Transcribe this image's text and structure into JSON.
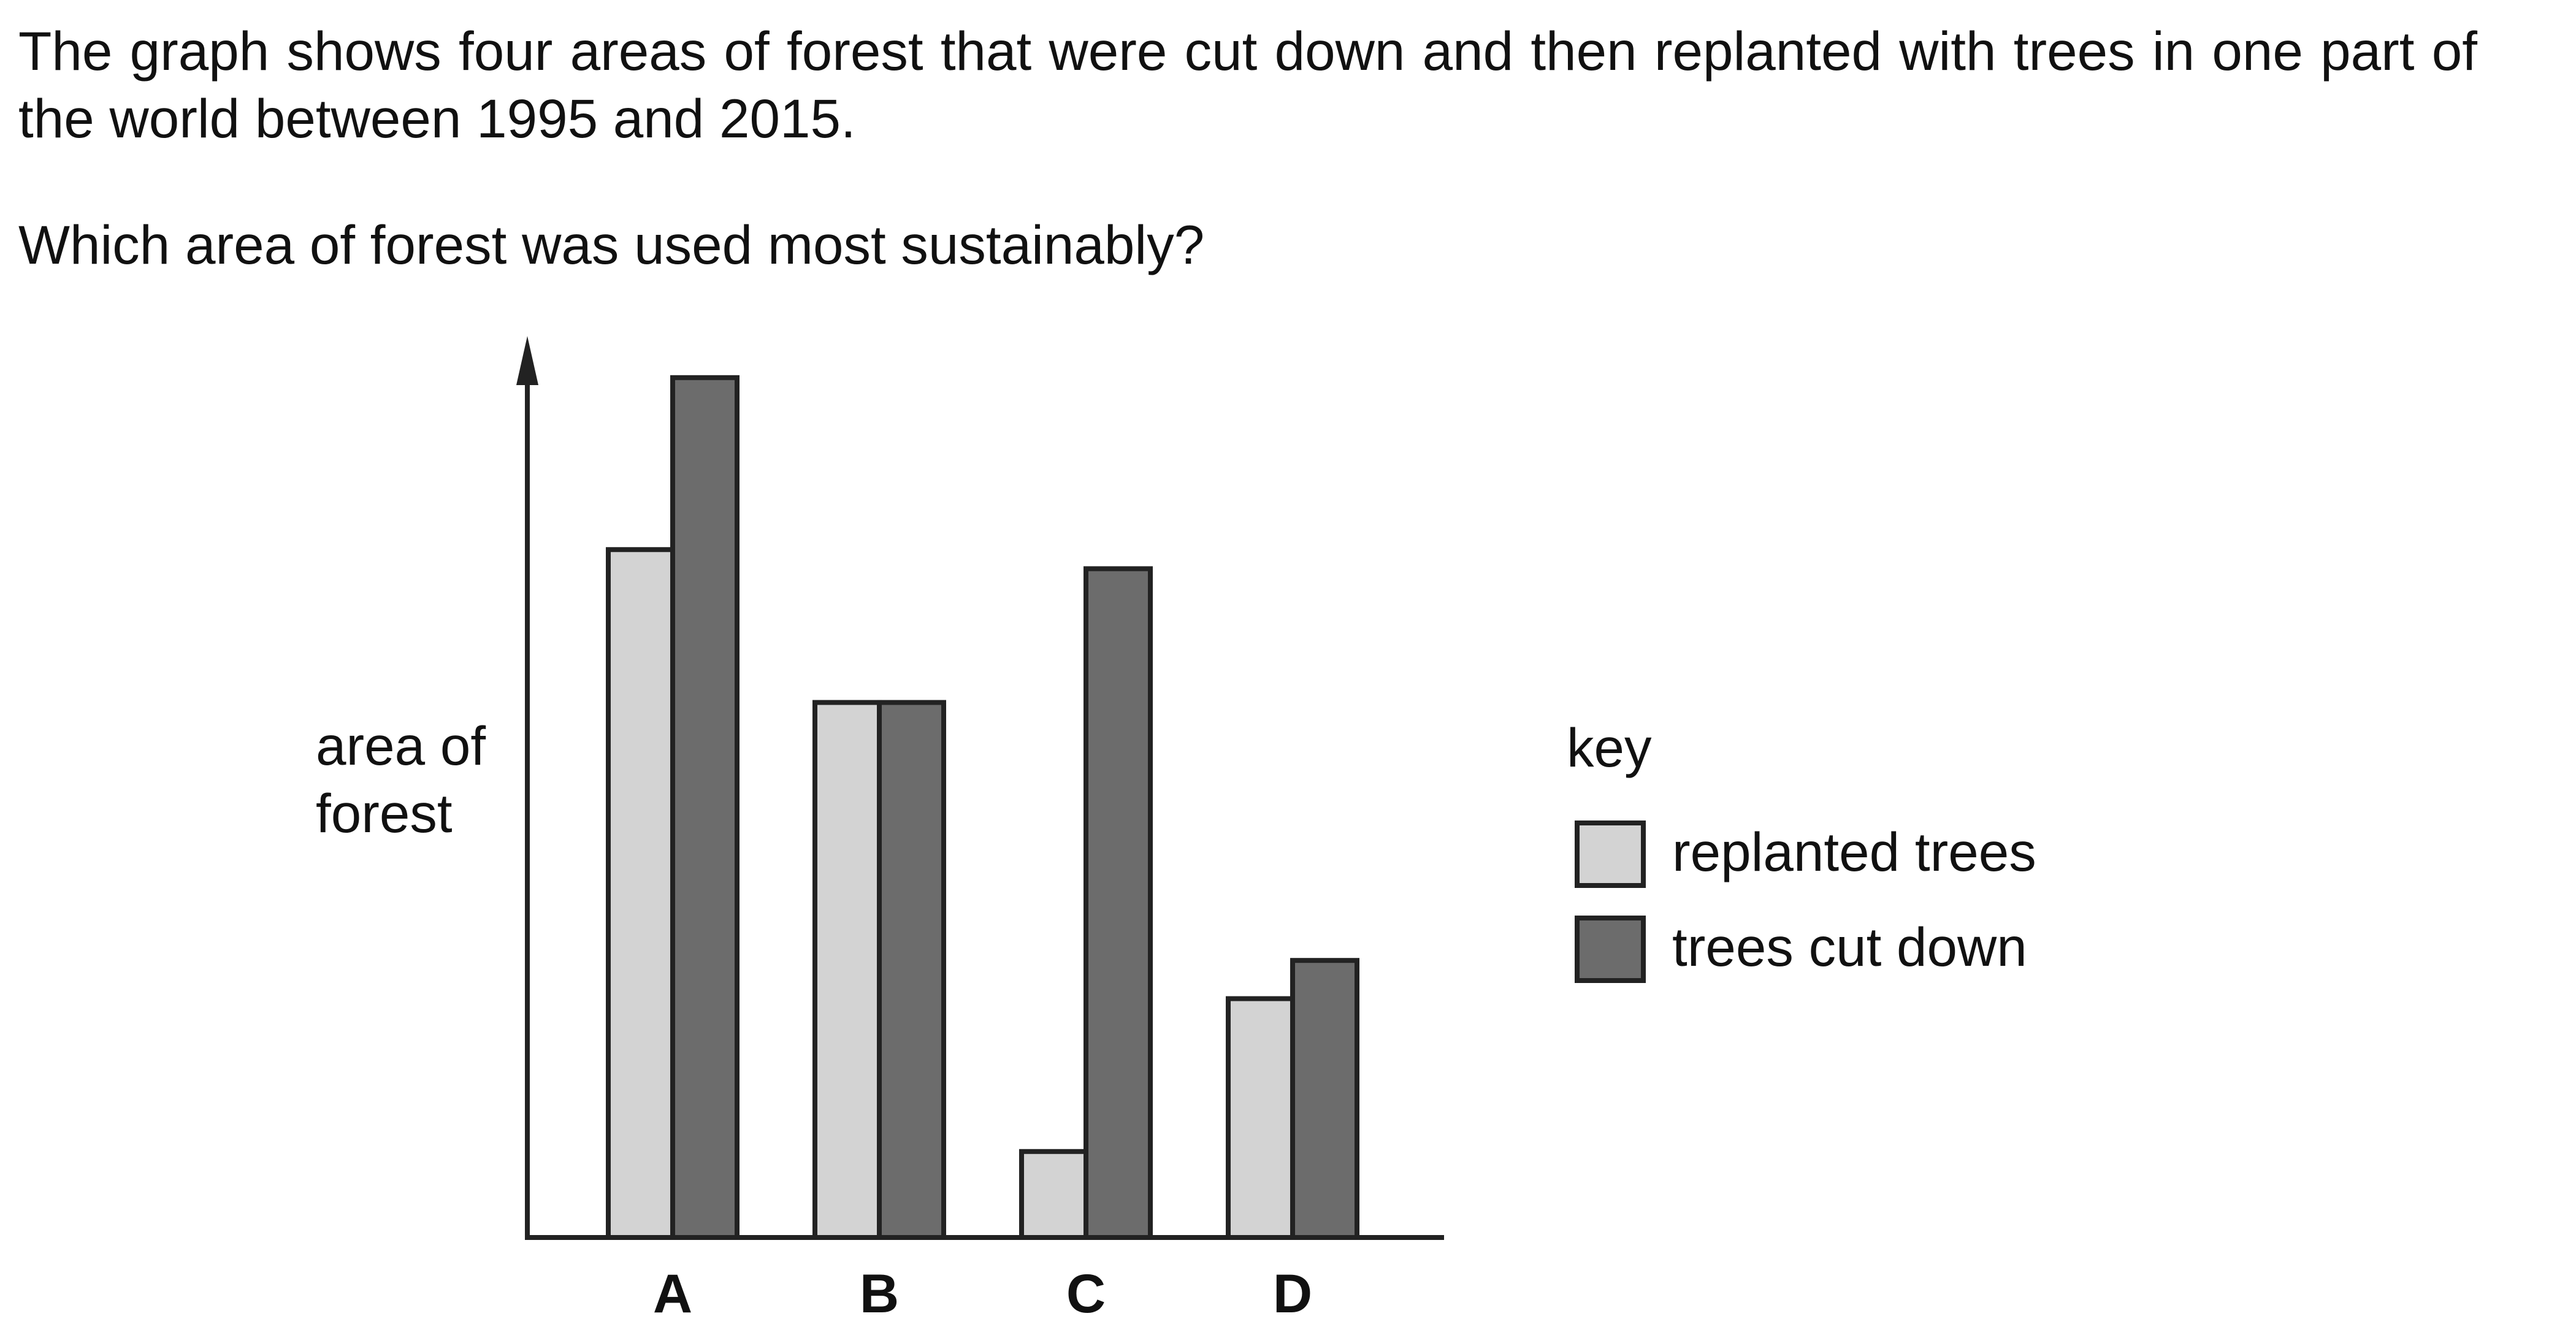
{
  "question": {
    "intro": "The graph shows four areas of forest that were cut down and then replanted with trees in one part of the world between 1995 and 2015.",
    "prompt": "Which area of forest was used most sustainably?"
  },
  "chart_data": {
    "type": "bar",
    "categories": [
      "A",
      "B",
      "C",
      "D"
    ],
    "series": [
      {
        "name": "replanted trees",
        "values": [
          7.2,
          5.6,
          0.9,
          2.5
        ],
        "color": "#d3d3d3"
      },
      {
        "name": "trees cut down",
        "values": [
          9.0,
          5.6,
          7.0,
          2.9
        ],
        "color": "#6c6c6c"
      }
    ],
    "ylabel_lines": [
      "area of",
      "forest"
    ],
    "xlabel": "",
    "title": "",
    "ylim": [
      0,
      10
    ],
    "y_ticks_shown": false,
    "grid": false,
    "legend": {
      "title": "key",
      "position": "right"
    }
  }
}
